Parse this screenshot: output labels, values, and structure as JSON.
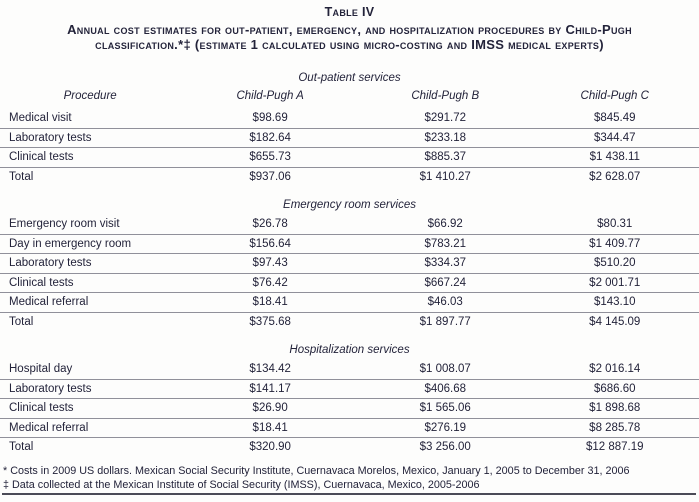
{
  "header": {
    "table_label": "Table IV",
    "title_lines": [
      "Annual cost estimates for out-patient, emergency, and hospitalization procedures by Child-Pugh",
      "classification.*‡ (estimate 1 calculated using micro-costing and IMSS medical experts)"
    ]
  },
  "columns": [
    "Procedure",
    "Child-Pugh A",
    "Child-Pugh B",
    "Child-Pugh C"
  ],
  "sections": [
    {
      "header": "Out-patient services",
      "rows": [
        [
          "Medical visit",
          "$98.69",
          "$291.72",
          "$845.49"
        ],
        [
          "Laboratory tests",
          "$182.64",
          "$233.18",
          "$344.47"
        ],
        [
          "Clinical tests",
          "$655.73",
          "$885.37",
          "$1 438.11"
        ],
        [
          "Total",
          "$937.06",
          "$1 410.27",
          "$2 628.07"
        ]
      ]
    },
    {
      "header": "Emergency room services",
      "rows": [
        [
          "Emergency room visit",
          "$26.78",
          "$66.92",
          "$80.31"
        ],
        [
          "Day in emergency room",
          "$156.64",
          "$783.21",
          "$1 409.77"
        ],
        [
          "Laboratory tests",
          "$97.43",
          "$334.37",
          "$510.20"
        ],
        [
          "Clinical tests",
          "$76.42",
          "$667.24",
          "$2 001.71"
        ],
        [
          "Medical referral",
          "$18.41",
          "$46.03",
          "$143.10"
        ],
        [
          "Total",
          "$375.68",
          "$1 897.77",
          "$4 145.09"
        ]
      ]
    },
    {
      "header": "Hospitalization services",
      "rows": [
        [
          "Hospital day",
          "$134.42",
          "$1 008.07",
          "$2 016.14"
        ],
        [
          "Laboratory tests",
          "$141.17",
          "$406.68",
          "$686.60"
        ],
        [
          "Clinical tests",
          "$26.90",
          "$1 565.06",
          "$1 898.68"
        ],
        [
          "Medical referral",
          "$18.41",
          "$276.19",
          "$8 285.78"
        ],
        [
          "Total",
          "$320.90",
          "$3 256.00",
          "$12 887.19"
        ]
      ]
    }
  ],
  "footnotes": [
    "* Costs in 2009 US dollars. Mexican Social Security Institute, Cuernavaca Morelos, Mexico, January 1, 2005 to December 31, 2006",
    "‡ Data collected at the Mexican Institute of Social Security (IMSS), Cuernavaca, Mexico, 2005-2006"
  ],
  "colors": {
    "text": "#23233a",
    "row_line": "#90909a",
    "bottom_rule": "#4b4b57",
    "background": "#fdfdfc"
  }
}
